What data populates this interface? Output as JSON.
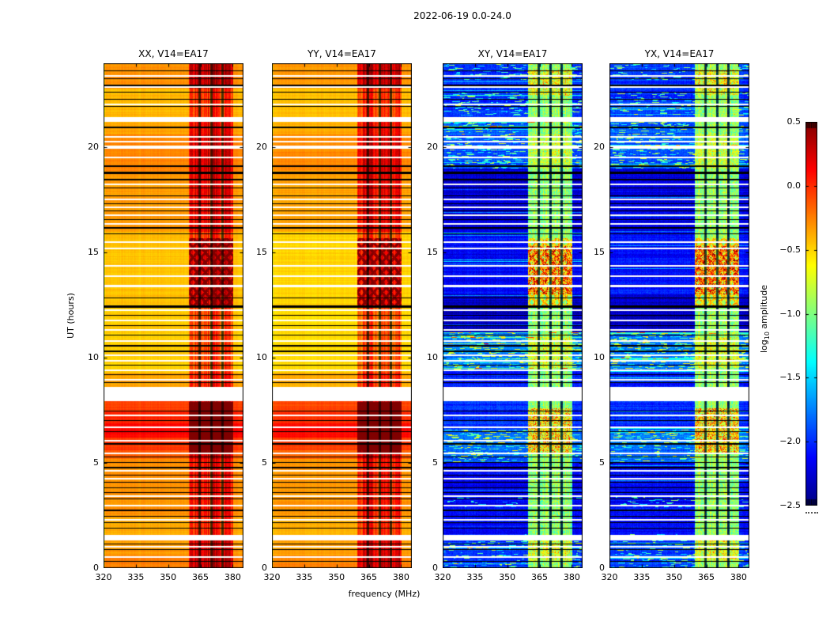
{
  "figure": {
    "title": "2022-06-19 0.0-24.0"
  },
  "chart_data": {
    "type": "heatmap",
    "subtype": "dynamic-spectrum-waterfall",
    "title": "2022-06-19 0.0-24.0",
    "xlabel": "frequency (MHz)",
    "ylabel": "UT (hours)",
    "x_ticks": [
      320,
      335,
      350,
      365,
      380
    ],
    "y_ticks": [
      0,
      5,
      10,
      15,
      20
    ],
    "freq_range_mhz": [
      320,
      385
    ],
    "time_range_hours": [
      0,
      24
    ],
    "grid": false,
    "colorbar": {
      "label": "log10 amplitude",
      "label_pre": "log",
      "label_sub": "10",
      "label_post": " amplitude",
      "tick_labels": [
        "0.5",
        "0.0",
        "−0.5",
        "−1.0",
        "−1.5",
        "−2.0",
        "−2.5"
      ],
      "tick_values": [
        0.5,
        0.0,
        -0.5,
        -1.0,
        -1.5,
        -2.0,
        -2.5
      ],
      "vmin": -2.5,
      "vmax": 0.5,
      "colormap": "jet",
      "position": "right"
    },
    "panels": [
      {
        "title": "XX, V14=EA17",
        "seed": 11,
        "kind": "parallel",
        "profile": "xx"
      },
      {
        "title": "YY, V14=EA17",
        "seed": 22,
        "kind": "parallel",
        "profile": "yy"
      },
      {
        "title": "XY, V14=EA17",
        "seed": 33,
        "kind": "cross",
        "profile": "xy"
      },
      {
        "title": "YX, V14=EA17",
        "seed": 44,
        "kind": "cross",
        "profile": "yx"
      }
    ],
    "profiles": {
      "xx": [
        [
          0,
          0.6,
          -0.25
        ],
        [
          0.6,
          1.32,
          -0.33
        ],
        [
          1.58,
          2.4,
          -0.38
        ],
        [
          2.4,
          5.2,
          -0.3
        ],
        [
          5.2,
          5.6,
          -0.15
        ],
        [
          5.6,
          6.2,
          -0.03
        ],
        [
          6.2,
          6.9,
          0.12
        ],
        [
          6.9,
          7.5,
          0.02
        ],
        [
          7.5,
          7.92,
          -0.06
        ],
        [
          8.62,
          9.3,
          -0.36
        ],
        [
          9.3,
          12.4,
          -0.48
        ],
        [
          12.4,
          16,
          -0.44
        ],
        [
          16,
          18.9,
          -0.33
        ],
        [
          18.9,
          20.6,
          -0.26
        ],
        [
          20.6,
          21.22,
          -0.36
        ],
        [
          21.45,
          22.8,
          -0.42
        ],
        [
          22.8,
          24,
          -0.3
        ]
      ],
      "yy": [
        [
          0,
          0.6,
          -0.27
        ],
        [
          0.6,
          1.32,
          -0.35
        ],
        [
          1.58,
          2.4,
          -0.4
        ],
        [
          2.4,
          5.2,
          -0.32
        ],
        [
          5.2,
          5.6,
          -0.16
        ],
        [
          5.6,
          6.2,
          -0.05
        ],
        [
          6.2,
          6.9,
          0.1
        ],
        [
          6.9,
          7.5,
          0.0
        ],
        [
          7.5,
          7.92,
          -0.08
        ],
        [
          8.62,
          9.3,
          -0.38
        ],
        [
          9.3,
          12.4,
          -0.52
        ],
        [
          12.4,
          16,
          -0.5
        ],
        [
          16,
          18.9,
          -0.35
        ],
        [
          18.9,
          20.6,
          -0.28
        ],
        [
          20.6,
          21.22,
          -0.38
        ],
        [
          21.45,
          22.8,
          -0.44
        ],
        [
          22.8,
          24,
          -0.32
        ]
      ],
      "xy": [
        [
          0,
          1.32,
          -1.95
        ],
        [
          1.58,
          2.9,
          -2.1
        ],
        [
          2.9,
          5.0,
          -2.15
        ],
        [
          5.0,
          6.6,
          -1.82
        ],
        [
          6.6,
          7.92,
          -2.0
        ],
        [
          8.62,
          9.4,
          -2.05
        ],
        [
          9.4,
          11.2,
          -1.75
        ],
        [
          11.2,
          13.0,
          -2.3
        ],
        [
          13.0,
          16.0,
          -2.12
        ],
        [
          16.0,
          19.0,
          -2.25
        ],
        [
          19.0,
          21.22,
          -1.9
        ],
        [
          21.45,
          24,
          -2.0
        ]
      ],
      "yx": [
        [
          0,
          1.32,
          -1.93
        ],
        [
          1.58,
          2.9,
          -2.12
        ],
        [
          2.9,
          5.0,
          -2.13
        ],
        [
          5.0,
          6.6,
          -1.8
        ],
        [
          6.6,
          7.92,
          -2.02
        ],
        [
          8.62,
          9.4,
          -2.03
        ],
        [
          9.4,
          11.2,
          -1.78
        ],
        [
          11.2,
          13.0,
          -2.28
        ],
        [
          13.0,
          16.0,
          -2.1
        ],
        [
          16.0,
          19.0,
          -2.22
        ],
        [
          19.0,
          21.22,
          -1.88
        ],
        [
          21.45,
          24,
          -1.98
        ]
      ]
    },
    "cross_texture": [
      [
        0,
        1.6,
        0.6
      ],
      [
        2.9,
        3.4,
        0.4
      ],
      [
        5.0,
        6.6,
        0.7
      ],
      [
        9.4,
        11.2,
        1.0
      ],
      [
        19.0,
        21.2,
        0.8
      ],
      [
        21.5,
        22.6,
        0.6
      ],
      [
        23.2,
        24,
        0.5
      ]
    ],
    "rfi": {
      "band": [
        359.8,
        380.3
      ],
      "subbands": [
        [
          359.8,
          364.3
        ],
        [
          365.3,
          369.7
        ],
        [
          370.7,
          374.9
        ],
        [
          375.9,
          380.3
        ]
      ],
      "flag_channels": [
        364.8,
        370.2,
        375.4
      ],
      "parallel_events": [
        [
          5.4,
          7.9,
          0.35
        ],
        [
          12.4,
          15.7,
          0.25
        ],
        [
          22.8,
          24,
          0.2
        ],
        [
          0,
          1.3,
          0.15
        ],
        [
          16.0,
          21.2,
          0.1
        ]
      ],
      "cross_events": [
        [
          5.4,
          7.6,
          0.7
        ],
        [
          13.0,
          15.3,
          0.7
        ],
        [
          0.3,
          1.3,
          0.35
        ],
        [
          9.5,
          11.0,
          0.3
        ],
        [
          22.5,
          23.7,
          0.45
        ],
        [
          19.0,
          20.6,
          0.25
        ]
      ],
      "crosshatch_hours": [
        12.4,
        15.7
      ]
    },
    "flags": {
      "black_lines": [
        [
          23.65,
          1
        ],
        [
          23.3,
          1
        ],
        [
          23.0,
          2
        ],
        [
          22.65,
          1
        ],
        [
          22.3,
          1
        ],
        [
          21.95,
          1
        ],
        [
          21.0,
          2
        ],
        [
          19.15,
          2
        ],
        [
          18.85,
          3
        ],
        [
          18.5,
          2
        ],
        [
          18.1,
          1
        ],
        [
          17.7,
          1
        ],
        [
          17.35,
          1
        ],
        [
          17.0,
          1
        ],
        [
          16.6,
          1
        ],
        [
          16.2,
          2
        ],
        [
          15.9,
          1
        ],
        [
          12.85,
          1
        ],
        [
          12.5,
          3
        ],
        [
          12.05,
          1
        ],
        [
          11.55,
          1
        ],
        [
          11.1,
          1
        ],
        [
          10.6,
          2
        ],
        [
          10.35,
          2
        ],
        [
          9.65,
          1
        ],
        [
          9.2,
          1
        ],
        [
          8.85,
          1
        ],
        [
          7.5,
          1
        ],
        [
          7.05,
          1
        ],
        [
          6.5,
          1
        ],
        [
          5.95,
          2
        ],
        [
          5.3,
          1
        ],
        [
          5.05,
          1
        ],
        [
          4.82,
          2
        ],
        [
          4.45,
          1
        ],
        [
          4.1,
          1
        ],
        [
          3.85,
          1
        ],
        [
          3.62,
          1
        ],
        [
          3.3,
          1
        ],
        [
          2.78,
          2
        ],
        [
          2.5,
          1
        ],
        [
          2.2,
          1
        ],
        [
          1.9,
          1
        ],
        [
          1.15,
          1
        ],
        [
          0.9,
          1
        ],
        [
          0.35,
          1
        ]
      ],
      "white_lines": [
        23.45,
        22.9,
        22.1,
        20.55,
        20.3,
        19.55,
        18.3,
        17.55,
        17.2,
        16.8,
        16.4,
        15.55,
        15.25,
        14.4,
        13.9,
        12.3,
        11.8,
        11.35,
        10.85,
        10.15,
        9.9,
        9.45,
        9.0,
        7.3,
        6.75,
        6.1,
        5.5,
        4.65,
        4.3,
        3.45,
        3.0,
        2.35,
        1.05,
        0.55
      ],
      "gaps": [
        [
          7.92,
          8.62
        ],
        [
          21.22,
          21.45
        ],
        [
          1.32,
          1.58
        ],
        [
          19.93,
          20.08
        ],
        [
          13.35,
          13.47
        ]
      ]
    }
  }
}
